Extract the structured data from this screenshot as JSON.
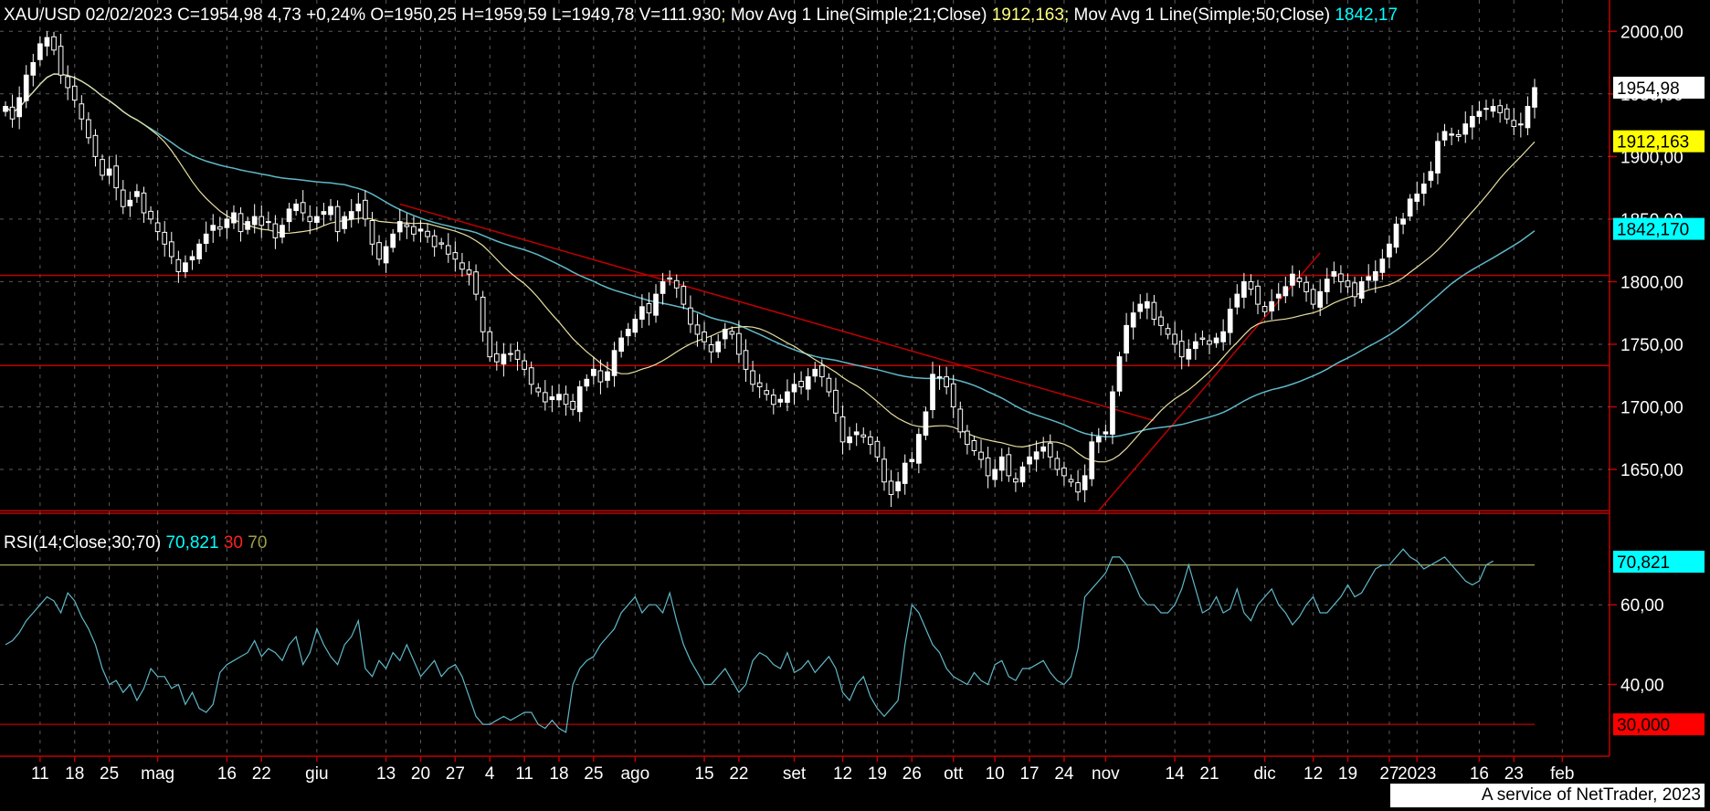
{
  "header": {
    "ohlc": "XAU/USD 02/02/2023 C=1954,98 4,73 +0,24% O=1950,25 H=1959,59 L=1949,78 V=111.930",
    "sep": ";",
    "ma21_label": "Mov Avg 1 Line(Simple;21;Close)",
    "ma21_value": "1912,163",
    "ma50_label": "Mov Avg 1 Line(Simple;50;Close)",
    "ma50_value": "1842,17"
  },
  "rsi_header": {
    "label": "RSI(14;Close;30;70)",
    "value": "70,821",
    "low": "30",
    "high": "70"
  },
  "footer": "A service of NetTrader, 2023",
  "colors": {
    "background": "#000000",
    "grid": "#5a5a5a",
    "axis": "#c00000",
    "ma21": "#e8e0a0",
    "ma50": "#5fb8c8",
    "rsi": "#5fb8c8",
    "resistance": "#c00000",
    "rsi_upper": "#a0a060",
    "price_tag_bg": "#ffffff",
    "ma21_tag_bg": "#ffff00",
    "ma50_tag_bg": "#00ffff",
    "rsi_tag_bg": "#00ffff",
    "rsi30_tag_bg": "#ff0000",
    "header_ma21": "#ffff80",
    "header_ma50": "#00ffff",
    "rsi_low_color": "#ff2020",
    "rsi_high_color": "#a0a040"
  },
  "chart_data": [
    {
      "type": "candlestick",
      "symbol": "XAU/USD",
      "ylim": [
        1615,
        2025
      ],
      "y_ticks": [
        "2000,00",
        "1950,00",
        "1900,00",
        "1850,00",
        "1800,00",
        "1750,00",
        "1700,00",
        "1650,00"
      ],
      "y_tick_values": [
        2000,
        1950,
        1900,
        1850,
        1800,
        1750,
        1700,
        1650
      ],
      "x_ticks": [
        "11",
        "18",
        "25",
        "mag",
        "16",
        "22",
        "giu",
        "13",
        "20",
        "27",
        "4",
        "11",
        "18",
        "25",
        "ago",
        "15",
        "22",
        "set",
        "12",
        "19",
        "26",
        "ott",
        "10",
        "17",
        "24",
        "nov",
        "14",
        "21",
        "dic",
        "12",
        "19",
        "27",
        "2023",
        "16",
        "23",
        "feb"
      ],
      "x_tick_index": [
        5,
        10,
        15,
        22,
        32,
        37,
        45,
        55,
        60,
        65,
        70,
        75,
        80,
        85,
        91,
        101,
        106,
        114,
        121,
        126,
        131,
        137,
        143,
        148,
        153,
        159,
        169,
        174,
        182,
        189,
        194,
        200,
        204,
        213,
        218,
        225
      ],
      "closes": [
        1940,
        1930,
        1947,
        1965,
        1975,
        1990,
        1995,
        1985,
        1965,
        1955,
        1945,
        1930,
        1915,
        1900,
        1885,
        1890,
        1875,
        1860,
        1865,
        1872,
        1855,
        1850,
        1840,
        1830,
        1820,
        1808,
        1815,
        1820,
        1830,
        1838,
        1845,
        1842,
        1850,
        1855,
        1840,
        1848,
        1852,
        1845,
        1848,
        1835,
        1845,
        1858,
        1862,
        1855,
        1848,
        1852,
        1856,
        1860,
        1840,
        1852,
        1856,
        1862,
        1850,
        1830,
        1818,
        1828,
        1838,
        1848,
        1844,
        1838,
        1842,
        1836,
        1828,
        1830,
        1822,
        1818,
        1810,
        1806,
        1790,
        1760,
        1740,
        1736,
        1742,
        1742,
        1738,
        1730,
        1718,
        1712,
        1704,
        1708,
        1710,
        1702,
        1698,
        1716,
        1722,
        1730,
        1720,
        1728,
        1745,
        1755,
        1762,
        1770,
        1780,
        1775,
        1790,
        1800,
        1802,
        1795,
        1782,
        1766,
        1758,
        1752,
        1744,
        1752,
        1762,
        1758,
        1742,
        1730,
        1718,
        1716,
        1710,
        1702,
        1706,
        1712,
        1718,
        1716,
        1724,
        1730,
        1724,
        1712,
        1695,
        1672,
        1676,
        1680,
        1676,
        1670,
        1660,
        1640,
        1630,
        1640,
        1655,
        1658,
        1678,
        1696,
        1726,
        1724,
        1716,
        1700,
        1680,
        1670,
        1665,
        1658,
        1645,
        1650,
        1660,
        1645,
        1640,
        1652,
        1660,
        1664,
        1668,
        1660,
        1650,
        1645,
        1640,
        1632,
        1645,
        1672,
        1676,
        1680,
        1712,
        1740,
        1765,
        1775,
        1782,
        1784,
        1770,
        1765,
        1758,
        1750,
        1740,
        1746,
        1752,
        1754,
        1750,
        1755,
        1760,
        1778,
        1790,
        1800,
        1794,
        1782,
        1776,
        1784,
        1790,
        1796,
        1806,
        1800,
        1792,
        1782,
        1792,
        1802,
        1808,
        1800,
        1796,
        1788,
        1800,
        1804,
        1808,
        1818,
        1830,
        1846,
        1850,
        1866,
        1870,
        1878,
        1888,
        1912,
        1920,
        1918,
        1916,
        1926,
        1932,
        1936,
        1938,
        1940,
        1935,
        1930,
        1924,
        1926,
        1940,
        1955
      ]
    },
    {
      "type": "line",
      "title": "RSI(14;Close;30;70)",
      "ylim": [
        22,
        80
      ],
      "y_ticks": [
        "60,00",
        "40,00"
      ],
      "y_tick_values": [
        60,
        40
      ],
      "levels": [
        30,
        70
      ],
      "last_value": 70.821,
      "values": [
        50,
        51,
        53,
        56,
        58,
        60,
        62,
        61,
        58,
        63,
        61,
        57,
        54,
        50,
        44,
        40,
        41,
        38,
        40,
        36,
        39,
        44,
        42,
        42,
        39,
        40,
        35,
        38,
        34,
        33,
        35,
        43,
        45,
        46,
        47,
        48,
        51,
        47,
        49,
        48,
        46,
        50,
        52,
        45,
        48,
        54,
        50,
        47,
        45,
        50,
        52,
        56,
        44,
        42,
        46,
        44,
        48,
        46,
        50,
        46,
        42,
        44,
        46,
        42,
        44,
        45,
        42,
        37,
        32,
        30,
        30,
        31,
        32,
        31,
        32,
        33,
        33,
        30,
        29,
        31,
        29,
        28,
        40,
        44,
        46,
        47,
        50,
        52,
        54,
        58,
        60,
        62,
        58,
        60,
        60,
        58,
        63,
        56,
        50,
        46,
        43,
        40,
        40,
        42,
        44,
        41,
        38,
        40,
        46,
        48,
        47,
        45,
        44,
        48,
        43,
        44,
        46,
        43,
        45,
        47,
        44,
        38,
        36,
        40,
        42,
        37,
        34,
        32,
        34,
        36,
        50,
        60,
        58,
        54,
        50,
        48,
        44,
        42,
        41,
        40,
        43,
        41,
        40,
        45,
        46,
        42,
        41,
        44,
        44,
        45,
        46,
        43,
        41,
        40,
        42,
        49,
        62,
        64,
        66,
        68,
        72,
        72,
        70,
        66,
        62,
        60,
        60,
        58,
        58,
        60,
        64,
        70,
        64,
        58,
        59,
        62,
        58,
        59,
        64,
        58,
        56,
        60,
        62,
        64,
        60,
        58,
        55,
        57,
        60,
        62,
        58,
        58,
        60,
        62,
        65,
        62,
        63,
        66,
        69,
        70,
        70,
        72,
        74,
        72,
        71,
        69,
        70,
        71,
        72,
        70,
        68,
        66,
        65,
        66,
        70,
        71
      ]
    }
  ],
  "price_tags": {
    "last": "1954,98",
    "ma21": "1912,163",
    "ma50": "1842,170",
    "rsi": "70,821",
    "rsi30": "30,000"
  }
}
